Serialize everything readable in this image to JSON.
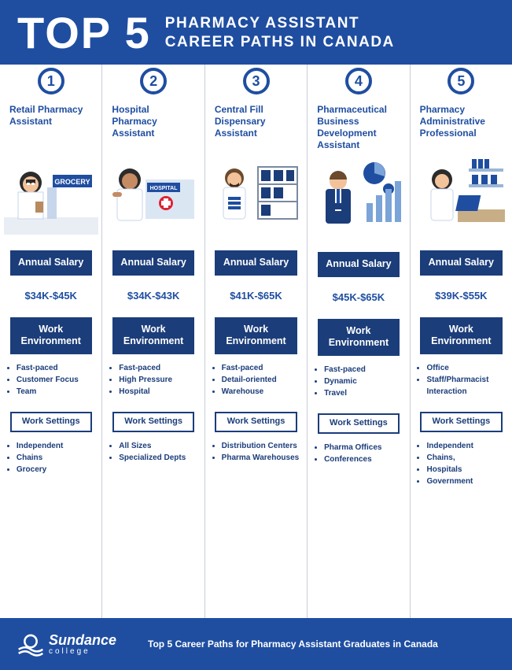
{
  "header": {
    "top": "TOP 5",
    "subtitle_line1": "PHARMACY ASSISTANT",
    "subtitle_line2": "CAREER PATHS IN CANADA"
  },
  "labels": {
    "salary": "Annual Salary",
    "env": "Work Environment",
    "settings": "Work Settings"
  },
  "colors": {
    "primary": "#1f4ea1",
    "dark": "#1b3d7a",
    "bg": "#ffffff",
    "divider": "#c7cdd6",
    "skin1": "#f2c29b",
    "skin2": "#e8a87c",
    "hair_dark": "#2b2b2b",
    "blue_accent": "#1f4ea1"
  },
  "careers": [
    {
      "num": "1",
      "title": "Retail Pharmacy Assistant",
      "salary": "$34K-$45K",
      "env": [
        "Fast-paced",
        "Customer Focus",
        "Team"
      ],
      "settings": [
        "Independent",
        "Chains",
        "Grocery"
      ]
    },
    {
      "num": "2",
      "title": "Hospital Pharmacy Assistant",
      "salary": "$34K-$43K",
      "env": [
        "Fast-paced",
        "High Pressure",
        "Hospital"
      ],
      "settings": [
        "All Sizes",
        "Specialized Depts"
      ]
    },
    {
      "num": "3",
      "title": "Central Fill Dispensary Assistant",
      "salary": "$41K-$65K",
      "env": [
        "Fast-paced",
        "Detail-oriented",
        "Warehouse"
      ],
      "settings": [
        "Distribution Centers",
        "Pharma Warehouses"
      ]
    },
    {
      "num": "4",
      "title": "Pharmaceutical Business Development Assistant",
      "salary": "$45K-$65K",
      "env": [
        "Fast-paced",
        "Dynamic",
        "Travel"
      ],
      "settings": [
        "Pharma Offices",
        "Conferences"
      ]
    },
    {
      "num": "5",
      "title": "Pharmacy Administrative Professional",
      "salary": "$39K-$55K",
      "env": [
        "Office",
        "Staff/Pharmacist Interaction"
      ],
      "settings": [
        "Independent",
        "Chains,",
        "Hospitals",
        "Government"
      ]
    }
  ],
  "footer": {
    "brand": "Sundance",
    "brand_sub": "college",
    "tagline": "Top 5 Career Paths for Pharmacy Assistant Graduates in Canada"
  }
}
